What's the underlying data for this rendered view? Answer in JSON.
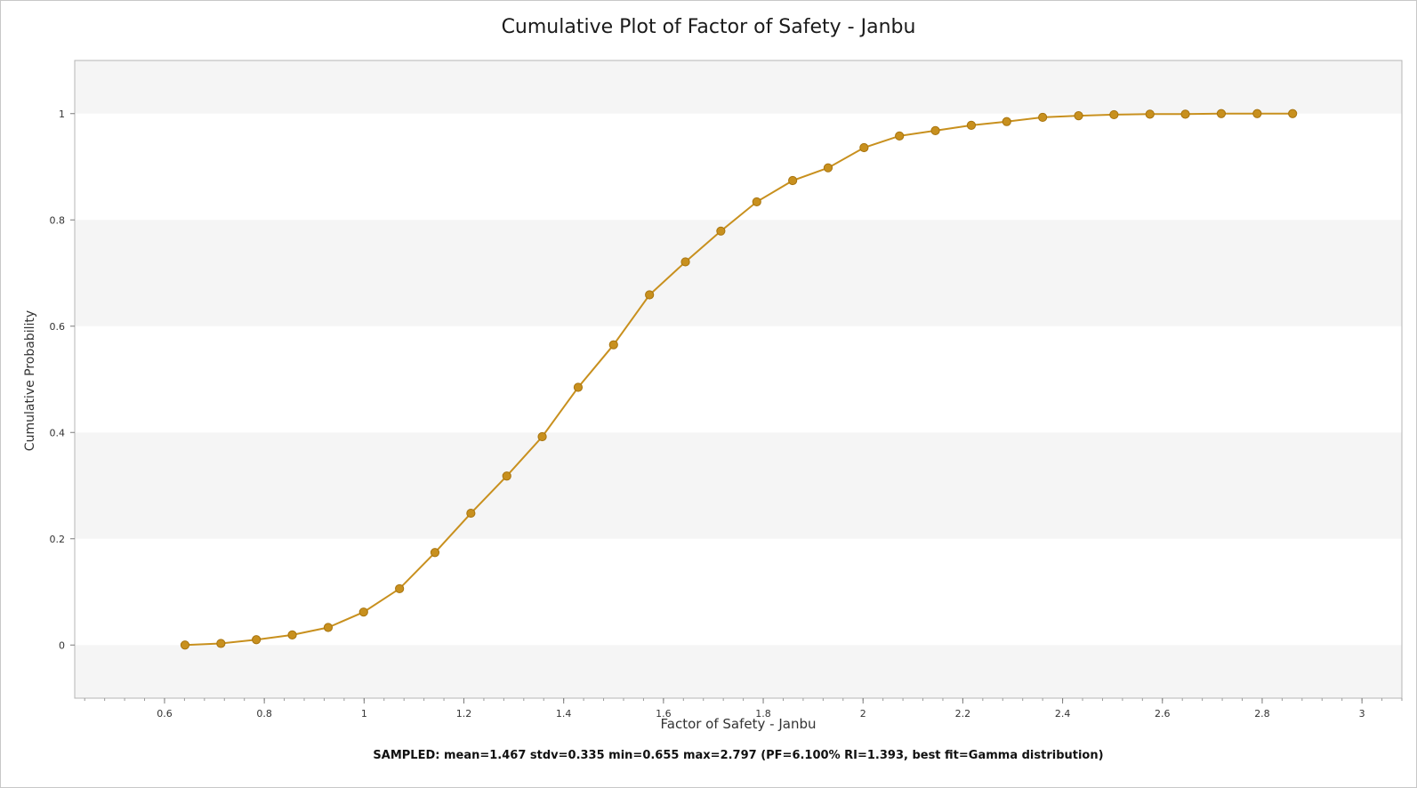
{
  "chart_data": {
    "type": "line",
    "title": "Cumulative Plot of Factor of Safety - Janbu",
    "xlabel": "Factor of Safety - Janbu",
    "ylabel": "Cumulative Probability",
    "footnote": "SAMPLED: mean=1.467 stdv=0.335 min=0.655 max=2.797  (PF=6.100% RI=1.393, best fit=Gamma distribution)",
    "xlim": [
      0.42,
      3.08
    ],
    "ylim": [
      -0.1,
      1.1
    ],
    "xticks": [
      0.6,
      0.8,
      1,
      1.2,
      1.4,
      1.6,
      1.8,
      2,
      2.2,
      2.4,
      2.6,
      2.8,
      3
    ],
    "xtick_labels": [
      "0.6",
      "0.8",
      "1",
      "1.2",
      "1.4",
      "1.6",
      "1.8",
      "2",
      "2.2",
      "2.4",
      "2.6",
      "2.8",
      "3"
    ],
    "yticks": [
      0,
      0.2,
      0.4,
      0.6,
      0.8,
      1
    ],
    "ytick_labels": [
      "0",
      "0.2",
      "0.4",
      "0.6",
      "0.8",
      "1"
    ],
    "line_color": "#c8901e",
    "series": [
      {
        "x": [
          0.641,
          0.713,
          0.784,
          0.856,
          0.928,
          0.999,
          1.071,
          1.142,
          1.214,
          1.286,
          1.357,
          1.429,
          1.5,
          1.572,
          1.644,
          1.715,
          1.787,
          1.859,
          1.93,
          2.002,
          2.073,
          2.145,
          2.217,
          2.288,
          2.36,
          2.432,
          2.503,
          2.575,
          2.646,
          2.718,
          2.79,
          2.861
        ],
        "y": [
          0.0,
          0.003,
          0.01,
          0.019,
          0.033,
          0.062,
          0.106,
          0.174,
          0.248,
          0.318,
          0.392,
          0.485,
          0.565,
          0.659,
          0.721,
          0.779,
          0.834,
          0.874,
          0.898,
          0.936,
          0.958,
          0.968,
          0.978,
          0.985,
          0.993,
          0.996,
          0.998,
          0.999,
          0.999,
          1.0,
          1.0,
          1.0
        ]
      }
    ]
  }
}
